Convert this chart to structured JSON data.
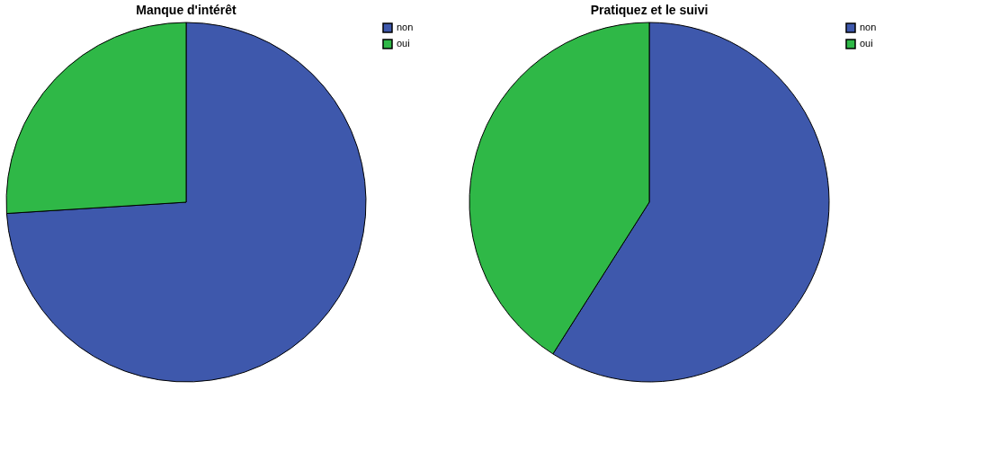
{
  "chart_data": [
    {
      "type": "pie",
      "title": "Manque d'intérêt",
      "categories": [
        "non",
        "oui"
      ],
      "values": [
        74,
        26
      ],
      "colors": [
        "#3e58ac",
        "#2fb847"
      ],
      "legend": "top right"
    },
    {
      "type": "pie",
      "title": "Pratiquez et le suivi",
      "categories": [
        "non",
        "oui"
      ],
      "values": [
        59,
        41
      ],
      "colors": [
        "#3e58ac",
        "#2fb847"
      ],
      "legend": "top right"
    }
  ]
}
